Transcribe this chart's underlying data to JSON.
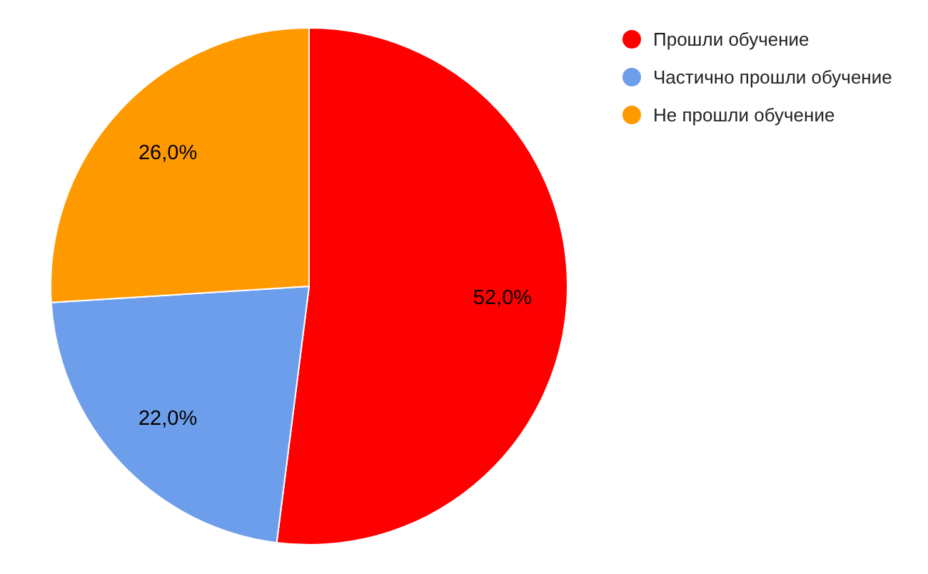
{
  "chart_data": {
    "type": "pie",
    "categories": [
      "Прошли обучение",
      "Частично прошли обучение",
      "Не прошли обучение"
    ],
    "values": [
      52,
      22,
      26
    ],
    "colors": [
      "#ff0000",
      "#6d9eeb",
      "#ff9900"
    ],
    "value_labels": [
      "52,0%",
      "22,0%",
      "26,0%"
    ],
    "legend": "top right"
  }
}
